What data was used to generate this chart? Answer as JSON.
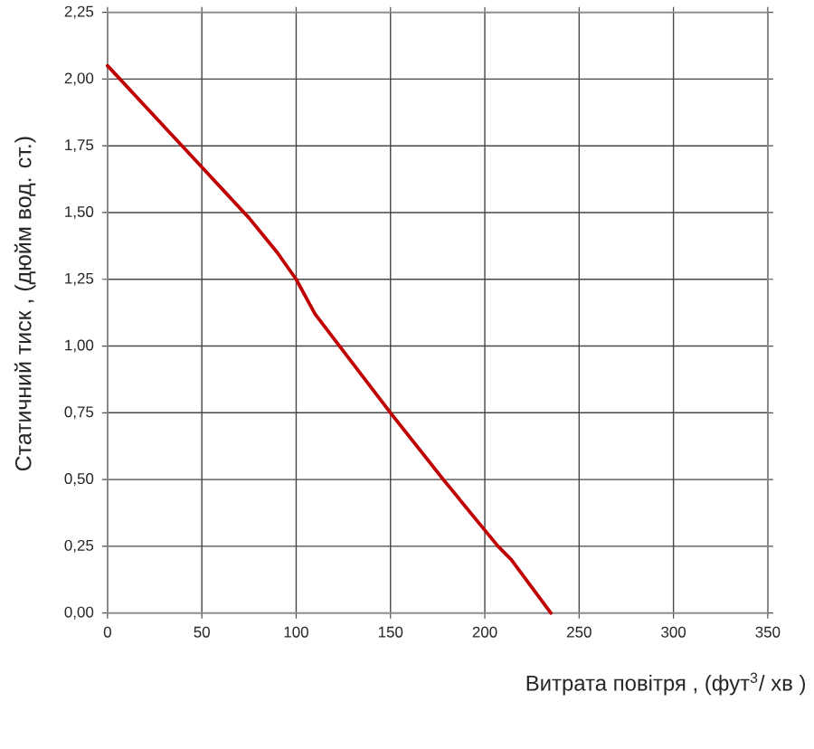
{
  "chart_data": {
    "type": "line",
    "xlabel": "Витрата повітря , (фут$^{3}$/ хв )",
    "ylabel": "Статичний тиск , (дюйм вод. ст.)",
    "x": [
      0,
      25,
      50,
      75,
      90,
      100,
      110,
      123,
      150,
      178,
      200,
      207,
      214,
      235
    ],
    "values": [
      2.05,
      1.86,
      1.67,
      1.48,
      1.35,
      1.25,
      1.12,
      1.0,
      0.75,
      0.5,
      0.31,
      0.25,
      0.2,
      0.0
    ],
    "color": "#c00000",
    "xlim": [
      0,
      350
    ],
    "xticks": [
      0,
      50,
      100,
      150,
      200,
      250,
      300,
      350
    ],
    "ylim": [
      0,
      2.25
    ],
    "yticks": [
      {
        "value": 0,
        "label": "0,00"
      },
      {
        "value": 0.25,
        "label": "0,25"
      },
      {
        "value": 0.5,
        "label": "0,50"
      },
      {
        "value": 0.75,
        "label": "0,75"
      },
      {
        "value": 1.0,
        "label": "1,00"
      },
      {
        "value": 1.25,
        "label": "1,25"
      },
      {
        "value": 1.5,
        "label": "1,50"
      },
      {
        "value": 1.75,
        "label": "1,75"
      },
      {
        "value": 2.0,
        "label": "2,00"
      },
      {
        "value": 2.25,
        "label": "2,25"
      }
    ],
    "grid": true
  }
}
